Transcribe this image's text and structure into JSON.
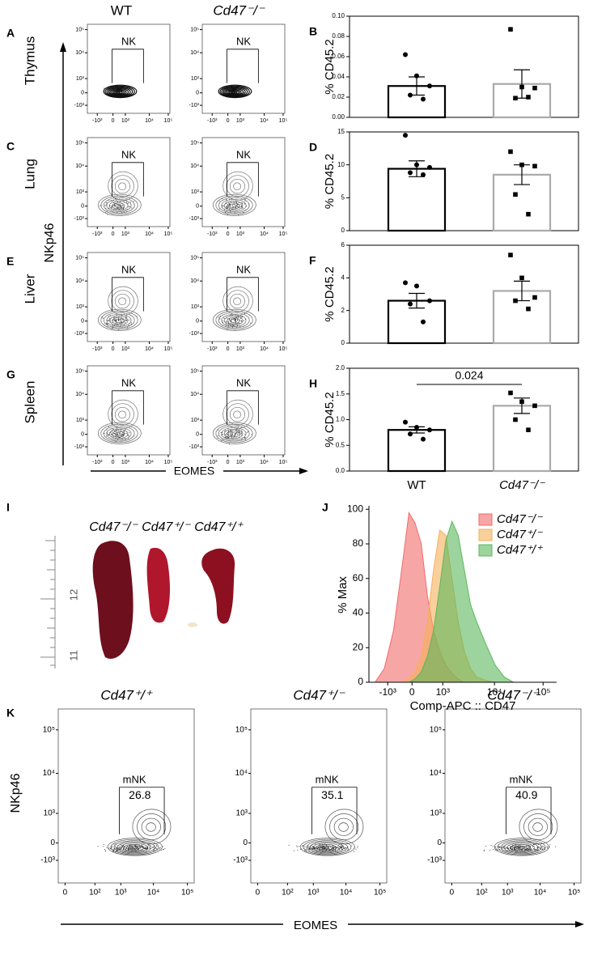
{
  "figure": {
    "columns": [
      "WT",
      "Cd47⁻/⁻"
    ],
    "panels": [
      "A",
      "C",
      "E",
      "G"
    ],
    "rows": [
      "Thymus",
      "Lung",
      "Liver",
      "Spleen"
    ],
    "y_axis": "NKp46",
    "x_axis": "EOMES",
    "flow_yticks": [
      "10⁵",
      "10⁴",
      "10³",
      "0",
      "-10³"
    ],
    "flow_xticks": [
      "-10³",
      "0",
      "10³",
      "10⁴",
      "10⁵"
    ],
    "gate": "NK",
    "panel_i": {
      "label": "I",
      "genotypes": [
        "Cd47⁻/⁻",
        "Cd47⁺/⁻",
        "Cd47⁺/⁺"
      ],
      "ruler": [
        "12",
        "11"
      ]
    },
    "panel_k": {
      "label": "K",
      "genotypes": [
        "Cd47⁺/⁺",
        "Cd47⁺/⁻",
        "Cd47⁻/⁻"
      ],
      "y_axis": "NKp46",
      "x_axis": "EOMES",
      "yticks": [
        "10⁵",
        "10⁴",
        "10³",
        "0",
        "-10³"
      ],
      "xticks": [
        "0",
        "10²",
        "10³",
        "10⁴",
        "10⁵"
      ],
      "gate": "mNK",
      "percentages": [
        26.8,
        35.1,
        40.9
      ]
    }
  },
  "chart_data": [
    {
      "type": "bar",
      "label": "B",
      "ylabel": "% CD45.2",
      "categories": [
        null,
        null
      ],
      "values": [
        0.031,
        0.033
      ],
      "errors": [
        0.009,
        0.014
      ],
      "points": [
        [
          0.062,
          0.041,
          0.031,
          0.022,
          0.018
        ],
        [
          0.087,
          0.03,
          0.029,
          0.019,
          0.02
        ]
      ],
      "colors": [
        "#000000",
        "#aaaaaa"
      ],
      "ylim": [
        0,
        0.1
      ],
      "yticks": [
        {
          "value": 0,
          "label": "0.00"
        },
        {
          "value": 0.02,
          "label": "0.02"
        },
        {
          "value": 0.04,
          "label": "0.04"
        },
        {
          "value": 0.06,
          "label": "0.06"
        },
        {
          "value": 0.08,
          "label": "0.08"
        },
        {
          "value": 0.1,
          "label": "0.10"
        }
      ]
    },
    {
      "type": "bar",
      "label": "D",
      "ylabel": "% CD45.2",
      "categories": [
        null,
        null
      ],
      "values": [
        9.4,
        8.5
      ],
      "errors": [
        1.2,
        1.5
      ],
      "points": [
        [
          14.5,
          10.0,
          9.6,
          8.8,
          8.5
        ],
        [
          12.0,
          10.0,
          9.8,
          5.5,
          2.5
        ]
      ],
      "colors": [
        "#000000",
        "#aaaaaa"
      ],
      "ylim": [
        0,
        15
      ],
      "yticks": [
        0,
        5,
        10,
        15
      ]
    },
    {
      "type": "bar",
      "label": "F",
      "ylabel": "% CD45.2",
      "categories": [
        null,
        null
      ],
      "values": [
        2.6,
        3.2
      ],
      "errors": [
        0.45,
        0.6
      ],
      "points": [
        [
          3.7,
          3.5,
          2.6,
          2.4,
          1.3
        ],
        [
          5.4,
          4.0,
          2.8,
          2.6,
          2.1
        ]
      ],
      "colors": [
        "#000000",
        "#aaaaaa"
      ],
      "ylim": [
        0,
        6
      ],
      "yticks": [
        0,
        2,
        4,
        6
      ]
    },
    {
      "type": "bar",
      "label": "H",
      "ylabel": "% CD45.2",
      "categories": [
        "WT",
        "Cd47⁻/⁻"
      ],
      "values": [
        0.8,
        1.27
      ],
      "errors": [
        0.06,
        0.15
      ],
      "points": [
        [
          0.95,
          0.85,
          0.8,
          0.72,
          0.62
        ],
        [
          1.52,
          1.35,
          1.27,
          1.0,
          0.8
        ]
      ],
      "colors": [
        "#000000",
        "#aaaaaa"
      ],
      "annotation": "0.024",
      "ylim": [
        0,
        2
      ],
      "yticks": [
        {
          "value": 0,
          "label": "0.0"
        },
        {
          "value": 0.5,
          "label": "0.5"
        },
        {
          "value": 1,
          "label": "1.0"
        },
        {
          "value": 1.5,
          "label": "1.5"
        },
        {
          "value": 2,
          "label": "2.0"
        }
      ]
    },
    {
      "type": "area",
      "label": "J",
      "ylabel": "% Max",
      "xlabel": "Comp-APC :: CD47",
      "x": [
        -1.2,
        -0.9,
        -0.6,
        -0.3,
        -0.1,
        0.1,
        0.3,
        0.5,
        0.7,
        0.9,
        1.1,
        1.3,
        1.5,
        1.7,
        1.9,
        2.1,
        2.4,
        2.7,
        3.0,
        3.3
      ],
      "series": [
        {
          "name": "Cd47⁻/⁻",
          "color": "#f26b6b",
          "values": [
            0,
            8,
            30,
            70,
            98,
            92,
            80,
            50,
            30,
            18,
            10,
            5,
            2,
            0,
            0,
            0,
            0,
            0,
            0,
            0
          ]
        },
        {
          "name": "Cd47⁺/⁻",
          "color": "#f5b05a",
          "values": [
            0,
            0,
            0,
            0,
            2,
            6,
            15,
            35,
            65,
            88,
            85,
            60,
            35,
            18,
            8,
            3,
            1,
            0,
            0,
            0
          ]
        },
        {
          "name": "Cd47⁺/⁺",
          "color": "#5cb85c",
          "values": [
            0,
            0,
            0,
            0,
            0,
            2,
            6,
            15,
            30,
            55,
            82,
            93,
            85,
            65,
            45,
            35,
            22,
            10,
            3,
            0
          ]
        }
      ],
      "xlim": [
        -1.4,
        4.7
      ],
      "xticks": [
        {
          "value": -0.79,
          "label": "-10³"
        },
        {
          "value": 0,
          "label": "0"
        },
        {
          "value": 1,
          "label": "10³"
        },
        {
          "value": 2.68,
          "label": "10⁴"
        },
        {
          "value": 4.26,
          "label": "10⁵"
        }
      ],
      "ylim": [
        0,
        102
      ],
      "yticks": [
        0,
        20,
        40,
        60,
        80,
        100
      ],
      "legend": "upper right"
    }
  ]
}
